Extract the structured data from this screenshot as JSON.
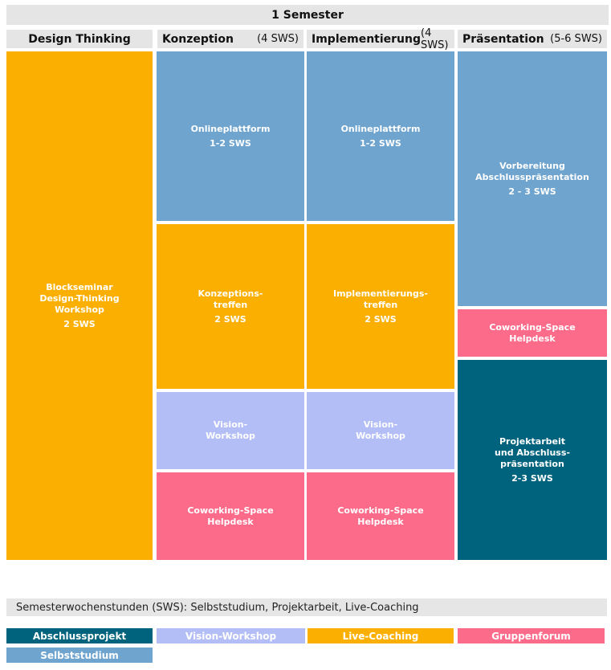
{
  "title": "1 Semester",
  "columns": [
    {
      "name": "Design Thinking",
      "sws": ""
    },
    {
      "name": "Konzeption",
      "sws": "(4 SWS)"
    },
    {
      "name": "Implementierung",
      "sws": "(4 SWS)"
    },
    {
      "name": "Präsentation",
      "sws": "(5-6 SWS)"
    }
  ],
  "blocks": {
    "dt_block": {
      "label": "Blockseminar\nDesign-Thinking\nWorkshop",
      "sws": "2 SWS"
    },
    "k_online": {
      "label": "Onlineplattform",
      "sws": "1-2 SWS"
    },
    "k_treffen": {
      "label": "Konzeptions-\ntreffen",
      "sws": "2 SWS"
    },
    "k_vision": {
      "label": "Vision-\nWorkshop",
      "sws": ""
    },
    "k_cowork": {
      "label": "Coworking-Space\nHelpdesk",
      "sws": ""
    },
    "i_online": {
      "label": "Onlineplattform",
      "sws": "1-2 SWS"
    },
    "i_treffen": {
      "label": "Implementierungs-\ntreffen",
      "sws": "2 SWS"
    },
    "i_vision": {
      "label": "Vision-\nWorkshop",
      "sws": ""
    },
    "i_cowork": {
      "label": "Coworking-Space\nHelpdesk",
      "sws": ""
    },
    "p_vorb": {
      "label": "Vorbereitung\nAbschlusspräsentation",
      "sws": "2 - 3 SWS"
    },
    "p_cowork": {
      "label": "Coworking-Space\nHelpdesk",
      "sws": ""
    },
    "p_projekt": {
      "label": "Projektarbeit\nund Abschluss-\npräsentation",
      "sws": "2-3 SWS"
    }
  },
  "note": "Semesterwochenstunden (SWS): Selbststudium, Projektarbeit, Live-Coaching",
  "legend": {
    "abschlussprojekt": "Abschlussprojekt",
    "vision_workshop": "Vision-Workshop",
    "live_coaching": "Live-Coaching",
    "gruppenforum": "Gruppenforum",
    "selbststudium": "Selbststudium"
  },
  "colors": {
    "blue": "#6fa4cf",
    "orange": "#fbaf00",
    "lavender": "#b3bef7",
    "pink": "#fd6b8a",
    "teal": "#00637d",
    "header_gray": "#e5e5e5"
  }
}
